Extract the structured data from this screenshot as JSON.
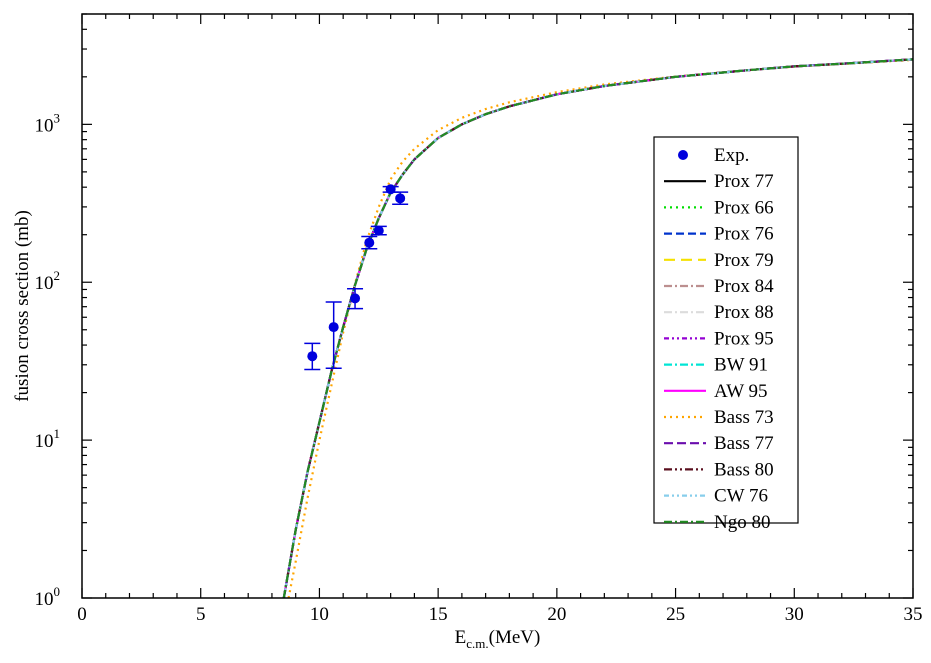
{
  "chart_data": {
    "type": "line",
    "title": "",
    "xlabel": "E",
    "xlabel_sub": "c.m.",
    "xlabel_unit": "(MeV)",
    "ylabel": "fusion cross section (mb)",
    "xscale": "linear",
    "yscale": "log",
    "xlim": [
      0,
      35
    ],
    "ylim": [
      1,
      5000
    ],
    "x_ticks": [
      0,
      5,
      10,
      15,
      20,
      25,
      30,
      35
    ],
    "x_tick_labels": [
      "0",
      "5",
      "10",
      "15",
      "20",
      "25",
      "30",
      "35"
    ],
    "y_ticks": [
      1,
      10,
      100,
      1000
    ],
    "y_tick_bases": [
      "10",
      "10",
      "10",
      "10"
    ],
    "y_tick_exps": [
      "0",
      "1",
      "2",
      "3"
    ],
    "legend_position": "right",
    "experimental": {
      "name": "Exp.",
      "color": "#0000dd",
      "points": [
        {
          "x": 9.7,
          "y": 34,
          "ylo": 28,
          "yhi": 41
        },
        {
          "x": 10.6,
          "y": 52,
          "ylo": 28.5,
          "yhi": 75
        },
        {
          "x": 11.5,
          "y": 79,
          "ylo": 68,
          "yhi": 91
        },
        {
          "x": 12.1,
          "y": 178,
          "ylo": 163,
          "yhi": 195
        },
        {
          "x": 12.5,
          "y": 212,
          "ylo": 200,
          "yhi": 226
        },
        {
          "x": 13.0,
          "y": 388,
          "ylo": 372,
          "yhi": 403
        },
        {
          "x": 13.4,
          "y": 340,
          "ylo": 312,
          "yhi": 372
        }
      ]
    },
    "base_curve": {
      "x": [
        8.5,
        9,
        9.5,
        10,
        10.5,
        11,
        11.5,
        12,
        12.5,
        13,
        13.5,
        14,
        15,
        16,
        17,
        18,
        20,
        22,
        25,
        28,
        30,
        32,
        35
      ],
      "y": [
        1.0,
        2.7,
        6.3,
        13,
        27,
        52,
        96,
        165,
        255,
        370,
        480,
        600,
        820,
        1000,
        1160,
        1300,
        1550,
        1750,
        2000,
        2200,
        2330,
        2420,
        2580
      ]
    },
    "bass73_curve": {
      "x": [
        8.7,
        9,
        9.5,
        10,
        10.5,
        11,
        11.5,
        12,
        12.5,
        13,
        13.5,
        14,
        15,
        16,
        17,
        18,
        20,
        22,
        25,
        28,
        30,
        32,
        35
      ],
      "y": [
        1.0,
        1.7,
        4.3,
        10,
        22,
        48,
        98,
        185,
        300,
        450,
        580,
        700,
        920,
        1100,
        1250,
        1380,
        1600,
        1790,
        2010,
        2200,
        2320,
        2410,
        2560
      ]
    },
    "series": [
      {
        "name": "Prox 77",
        "color": "#000000",
        "dash": "",
        "curve": "base"
      },
      {
        "name": "Prox 66",
        "color": "#00dd00",
        "dash": "2,4",
        "curve": "base"
      },
      {
        "name": "Prox 76",
        "color": "#0033cc",
        "dash": "8,4",
        "curve": "base"
      },
      {
        "name": "Prox 79",
        "color": "#f5e100",
        "dash": "11,6",
        "curve": "base"
      },
      {
        "name": "Prox 84",
        "color": "#bc8f8f",
        "dash": "8,3,2,3",
        "curve": "base"
      },
      {
        "name": "Prox 88",
        "color": "#dcdcdc",
        "dash": "8,3,2,3",
        "curve": "base"
      },
      {
        "name": "Prox 95",
        "color": "#9400d3",
        "dash": "5,3,2,3,2,3",
        "curve": "base"
      },
      {
        "name": "BW 91",
        "color": "#00e5d5",
        "dash": "8,3,2,3",
        "curve": "base"
      },
      {
        "name": "AW 95",
        "color": "#ff00ff",
        "dash": "",
        "curve": "base"
      },
      {
        "name": "Bass 73",
        "color": "#ffa500",
        "dash": "2,4",
        "curve": "bass73"
      },
      {
        "name": "Bass 77",
        "color": "#6a0dad",
        "dash": "9,4",
        "curve": "base"
      },
      {
        "name": "Bass 80",
        "color": "#5a0f1e",
        "dash": "8,3,2,3,2,3",
        "curve": "base"
      },
      {
        "name": "CW 76",
        "color": "#87ceeb",
        "dash": "5,3,2,3,2,3",
        "curve": "base"
      },
      {
        "name": "Ngo 80",
        "color": "#228b22",
        "dash": "8,3,2,3",
        "curve": "base"
      }
    ]
  }
}
